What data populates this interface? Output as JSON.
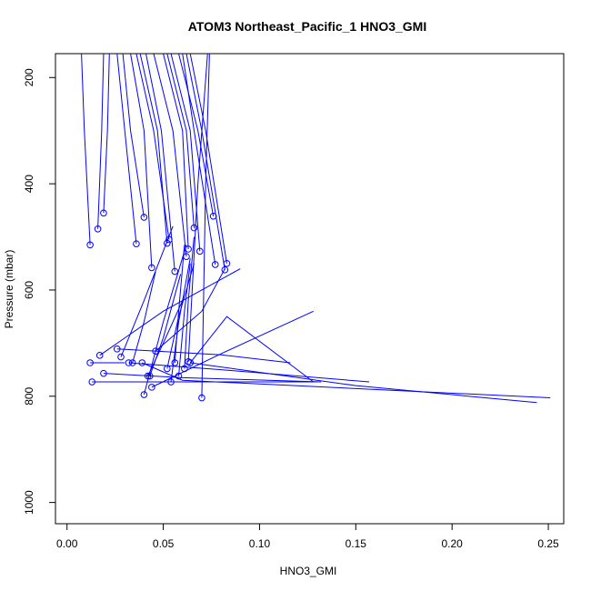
{
  "chart_data": {
    "type": "line",
    "title": "ATOM3 Northeast_Pacific_1 HNO3_GMI",
    "xlabel": "HNO3_GMI",
    "ylabel": "Pressure (mbar)",
    "xlim": [
      -0.006,
      0.258
    ],
    "ylim": [
      1040,
      155
    ],
    "y_reversed": true,
    "x_ticks": [
      0.0,
      0.05,
      0.1,
      0.15,
      0.2,
      0.25
    ],
    "x_tick_labels": [
      "0.00",
      "0.05",
      "0.10",
      "0.15",
      "0.20",
      "0.25"
    ],
    "y_ticks": [
      200,
      400,
      600,
      800,
      1000
    ],
    "y_tick_labels": [
      "200",
      "400",
      "600",
      "800",
      "1000"
    ],
    "line_color": "#0000ff",
    "point_color": "#0000ff",
    "series": [
      {
        "x": [
          0.012,
          0.009,
          0.0075
        ],
        "y": [
          515,
          300,
          155
        ]
      },
      {
        "x": [
          0.016,
          0.018,
          0.019
        ],
        "y": [
          485,
          300,
          155
        ]
      },
      {
        "x": [
          0.019,
          0.021,
          0.022
        ],
        "y": [
          455,
          300,
          155
        ]
      },
      {
        "x": [
          0.04,
          0.033,
          0.029
        ],
        "y": [
          463,
          300,
          155
        ]
      },
      {
        "x": [
          0.036,
          0.03,
          0.026
        ],
        "y": [
          513,
          300,
          155
        ]
      },
      {
        "x": [
          0.044,
          0.04,
          0.033
        ],
        "y": [
          558,
          300,
          155
        ]
      },
      {
        "x": [
          0.053,
          0.045,
          0.036
        ],
        "y": [
          505,
          300,
          155
        ]
      },
      {
        "x": [
          0.052,
          0.047,
          0.038
        ],
        "y": [
          512,
          300,
          155
        ]
      },
      {
        "x": [
          0.056,
          0.049,
          0.041
        ],
        "y": [
          565,
          300,
          155
        ]
      },
      {
        "x": [
          0.062,
          0.055,
          0.045
        ],
        "y": [
          537,
          300,
          155
        ]
      },
      {
        "x": [
          0.063,
          0.06,
          0.05
        ],
        "y": [
          523,
          300,
          155
        ]
      },
      {
        "x": [
          0.066,
          0.062,
          0.052
        ],
        "y": [
          483,
          300,
          155
        ]
      },
      {
        "x": [
          0.069,
          0.064,
          0.054
        ],
        "y": [
          527,
          300,
          155
        ]
      },
      {
        "x": [
          0.076,
          0.068,
          0.058
        ],
        "y": [
          461,
          300,
          155
        ]
      },
      {
        "x": [
          0.077,
          0.066,
          0.06
        ],
        "y": [
          552,
          300,
          155
        ]
      },
      {
        "x": [
          0.082,
          0.07,
          0.062
        ],
        "y": [
          562,
          300,
          155
        ]
      },
      {
        "x": [
          0.083,
          0.072,
          0.064
        ],
        "y": [
          550,
          300,
          155
        ]
      },
      {
        "x": [
          0.063,
          0.068,
          0.073
        ],
        "y": [
          735,
          400,
          155
        ]
      },
      {
        "x": [
          0.07,
          0.072,
          0.074
        ],
        "y": [
          803,
          400,
          155
        ]
      },
      {
        "x": [
          0.012,
          0.02,
          0.03
        ],
        "y": [
          737,
          737,
          737
        ]
      },
      {
        "x": [
          0.013,
          0.05,
          0.13
        ],
        "y": [
          773,
          773,
          773
        ]
      },
      {
        "x": [
          0.017,
          0.05,
          0.09
        ],
        "y": [
          723,
          640,
          560
        ]
      },
      {
        "x": [
          0.019,
          0.06,
          0.132
        ],
        "y": [
          757,
          765,
          773
        ]
      },
      {
        "x": [
          0.026,
          0.08,
          0.116
        ],
        "y": [
          711,
          722,
          737
        ]
      },
      {
        "x": [
          0.028,
          0.04,
          0.055
        ],
        "y": [
          726,
          620,
          480
        ]
      },
      {
        "x": [
          0.032,
          0.08,
          0.157
        ],
        "y": [
          737,
          750,
          773
        ]
      },
      {
        "x": [
          0.034,
          0.04,
          0.046
        ],
        "y": [
          737,
          660,
          565
        ]
      },
      {
        "x": [
          0.039,
          0.06,
          0.251
        ],
        "y": [
          737,
          770,
          803
        ]
      },
      {
        "x": [
          0.04,
          0.05,
          0.062
        ],
        "y": [
          797,
          660,
          515
        ]
      },
      {
        "x": [
          0.042,
          0.05,
          0.06
        ],
        "y": [
          762,
          700,
          620
        ]
      },
      {
        "x": [
          0.043,
          0.05,
          0.059
        ],
        "y": [
          762,
          690,
          570
        ]
      },
      {
        "x": [
          0.044,
          0.08,
          0.128
        ],
        "y": [
          783,
          720,
          640
        ]
      },
      {
        "x": [
          0.046,
          0.07,
          0.082
        ],
        "y": [
          715,
          640,
          560
        ]
      },
      {
        "x": [
          0.052,
          0.058,
          0.066
        ],
        "y": [
          748,
          650,
          550
        ]
      },
      {
        "x": [
          0.054,
          0.058,
          0.064
        ],
        "y": [
          773,
          660,
          540
        ]
      },
      {
        "x": [
          0.056,
          0.058,
          0.061
        ],
        "y": [
          737,
          640,
          515
        ]
      },
      {
        "x": [
          0.058,
          0.061,
          0.064
        ],
        "y": [
          762,
          640,
          550
        ]
      },
      {
        "x": [
          0.061,
          0.063,
          0.066
        ],
        "y": [
          748,
          620,
          500
        ]
      },
      {
        "x": [
          0.064,
          0.15,
          0.244
        ],
        "y": [
          737,
          780,
          812
        ]
      },
      {
        "x": [
          0.064,
          0.083,
          0.128
        ],
        "y": [
          737,
          650,
          773
        ]
      }
    ],
    "grid": false,
    "legend": "none"
  }
}
